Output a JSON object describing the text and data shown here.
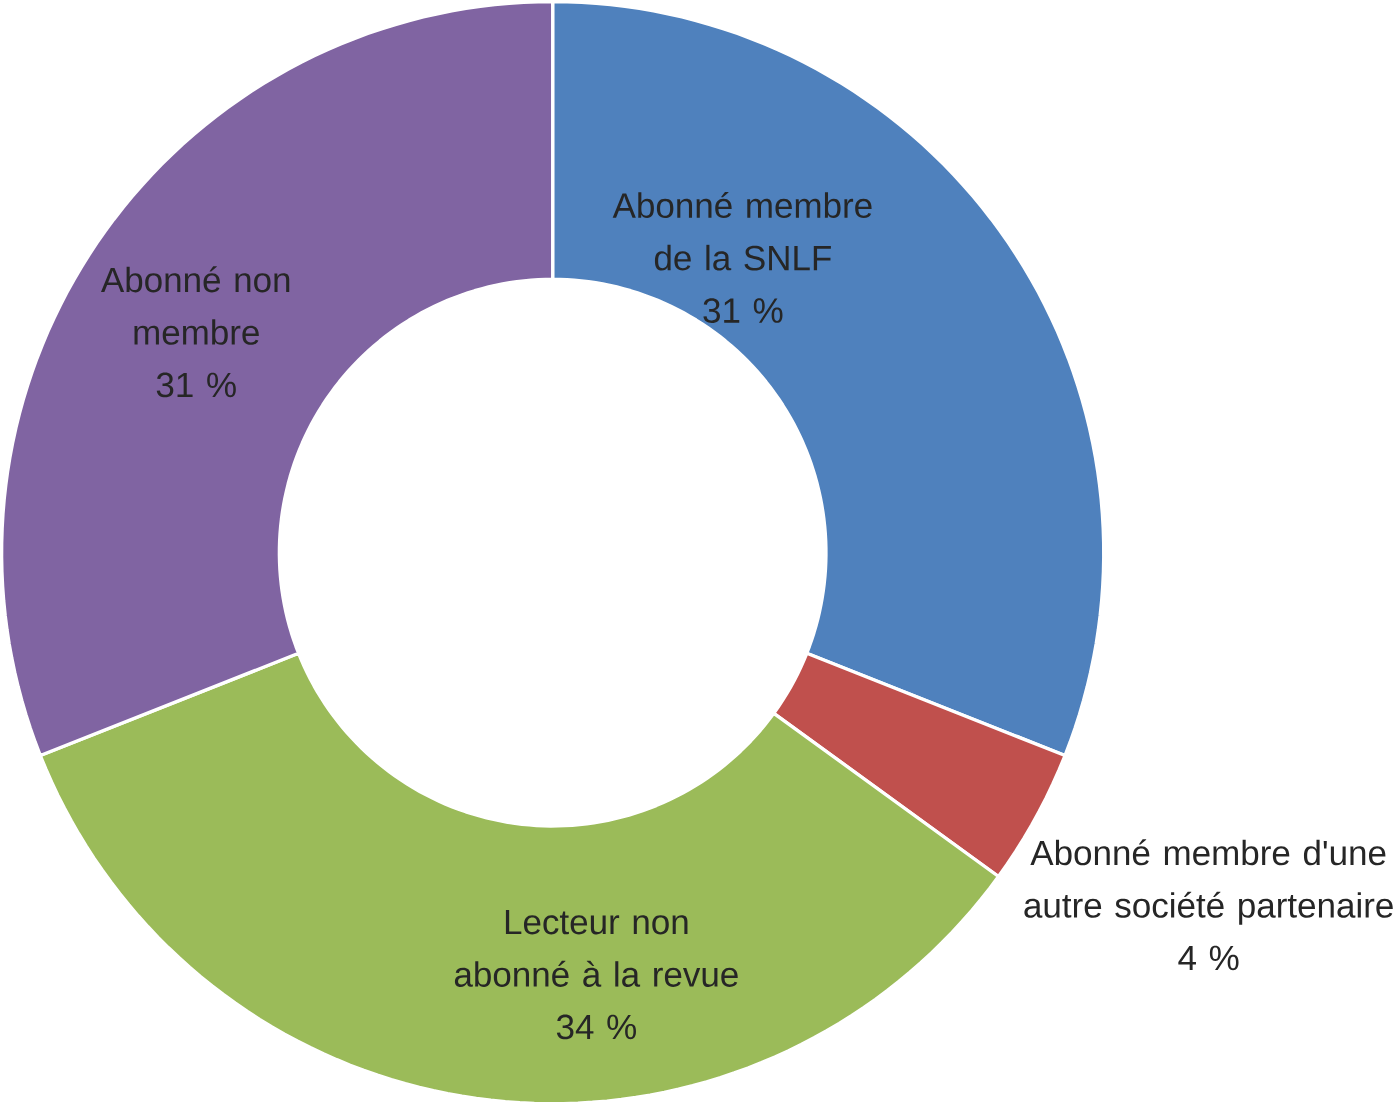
{
  "chart_data": {
    "type": "donut",
    "categories": [
      "Abonné membre de la SNLF",
      "Abonné membre d'une autre société partenaire",
      "Lecteur non abonné à la revue",
      "Abonné non membre"
    ],
    "values": [
      31,
      4,
      34,
      31
    ],
    "value_labels": [
      "31 %",
      "4 %",
      "34 %",
      "31 %"
    ],
    "colors": [
      "#4f81bd",
      "#c0504d",
      "#9bbb59",
      "#8064a2"
    ]
  }
}
